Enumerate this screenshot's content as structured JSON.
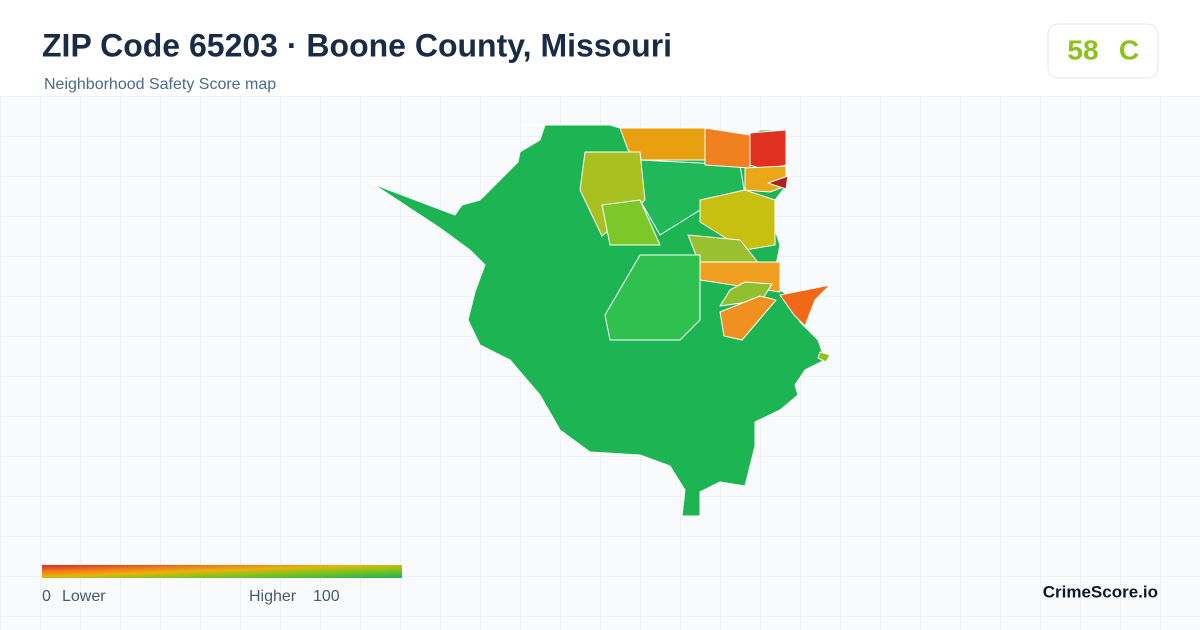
{
  "header": {
    "title": "ZIP Code 65203 · Boone County, Missouri",
    "subtitle": "Neighborhood Safety Score map"
  },
  "score": {
    "value": 58,
    "grade": "C"
  },
  "legend": {
    "min": 0,
    "min_label": "Lower",
    "max_label": "Higher",
    "max": 100
  },
  "brand": "CrimeScore.io"
}
